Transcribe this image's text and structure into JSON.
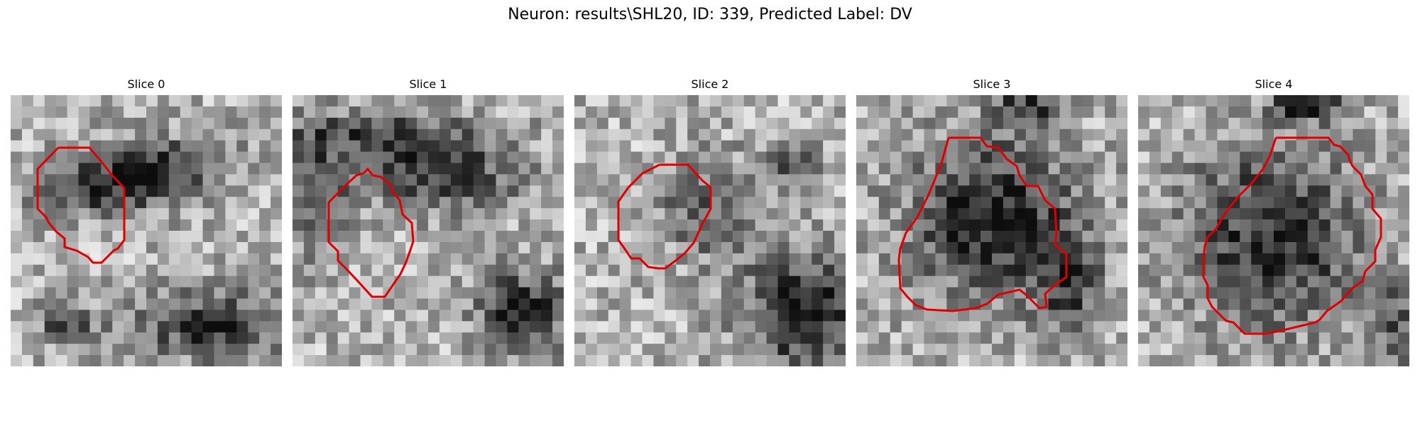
{
  "figure": {
    "suptitle": "Neuron: results\\SHL20, ID: 339, Predicted Label: DV",
    "contour_color": "#e00000",
    "panels": [
      {
        "title": "Slice 0"
      },
      {
        "title": "Slice 1"
      },
      {
        "title": "Slice 2"
      },
      {
        "title": "Slice 3"
      },
      {
        "title": "Slice 4"
      }
    ]
  }
}
